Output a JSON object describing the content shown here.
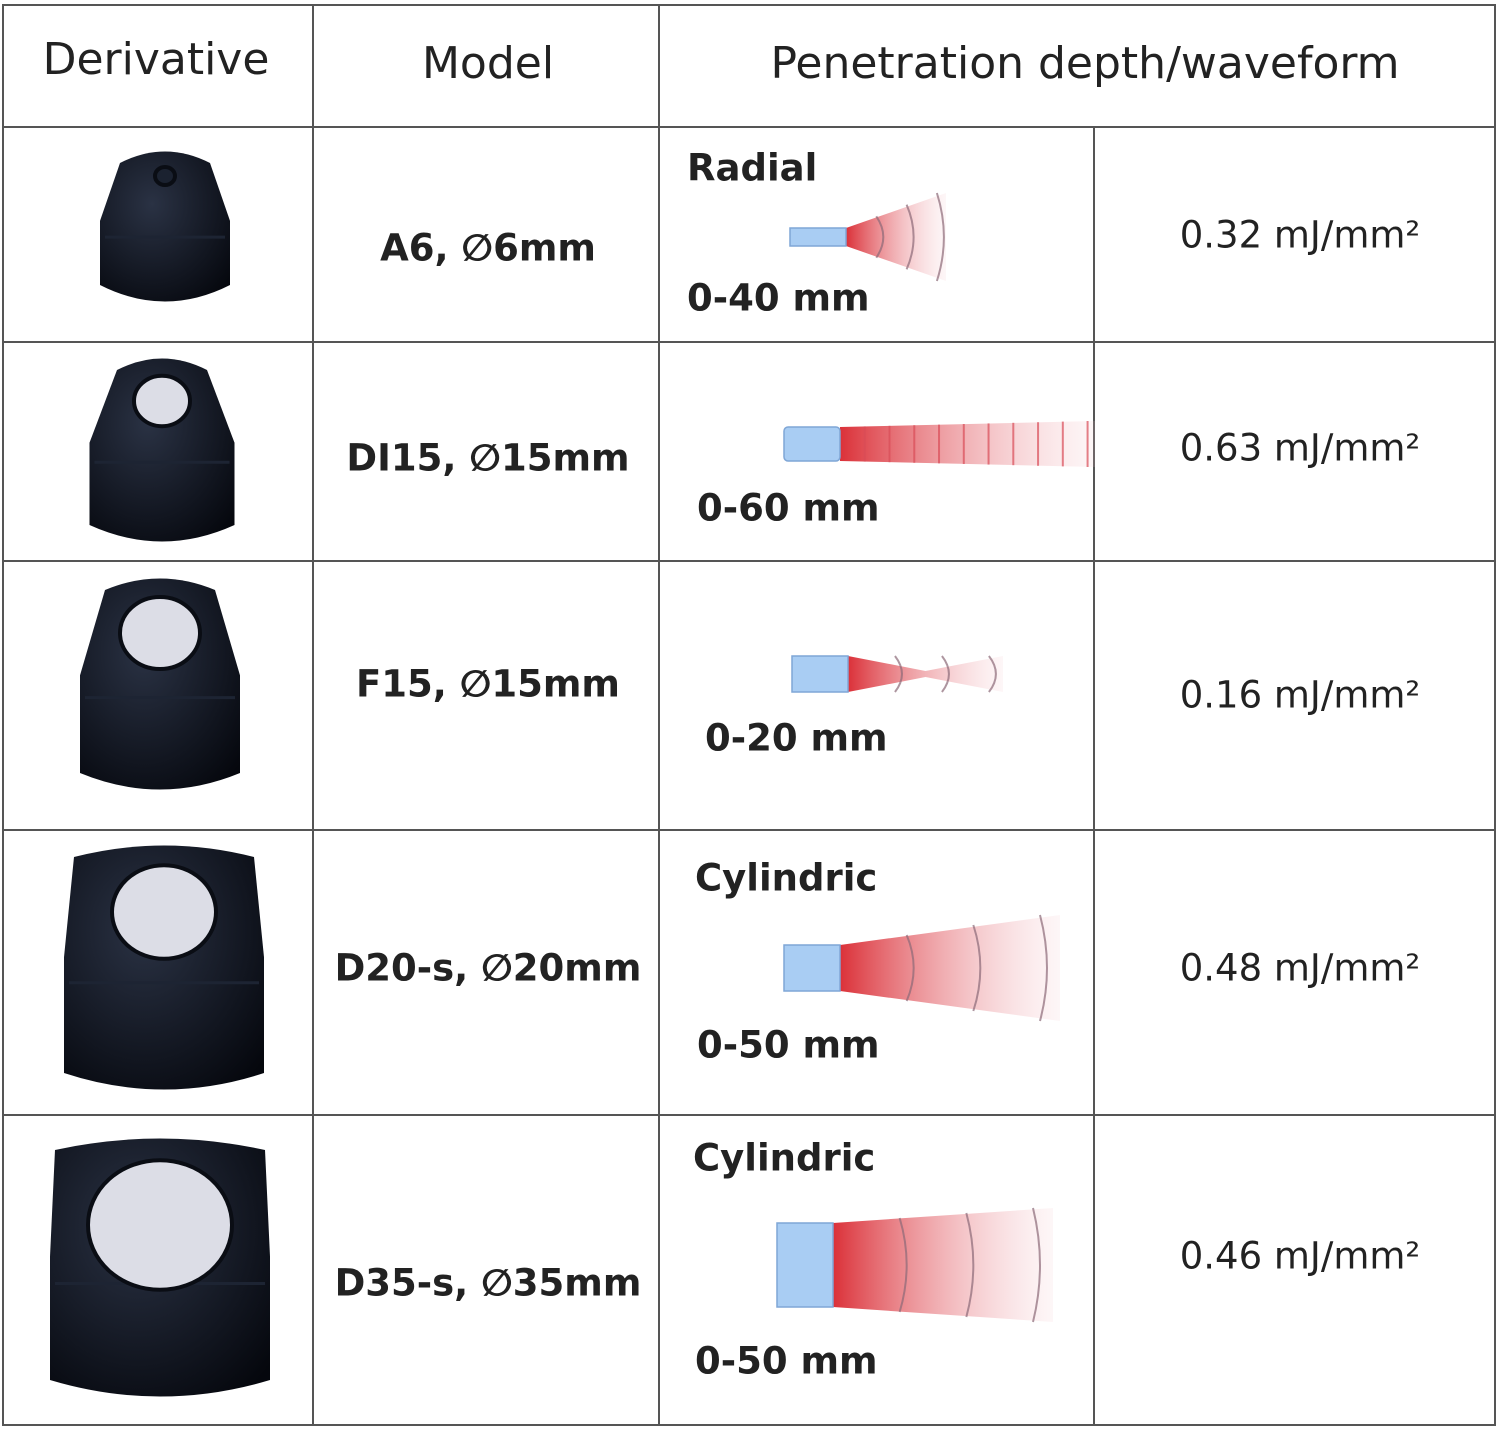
{
  "table": {
    "header": [
      "Derivative",
      "Model",
      "Penetration depth/waveform"
    ],
    "rows": [
      {
        "model": "A6, ∅6mm",
        "waveform": "Radial",
        "depth": "0-40 mm",
        "energy": "0.32 mJ/mm²"
      },
      {
        "model": "DI15, ∅15mm",
        "depth": "0-60 mm",
        "energy": "0.63 mJ/mm²"
      },
      {
        "model": "F15, ∅15mm",
        "depth": "0-20 mm",
        "energy": "0.16 mJ/mm²"
      },
      {
        "model": "D20-s, ∅20mm",
        "waveform": "Cylindric",
        "depth": "0-50 mm",
        "energy": "0.48 mJ/mm²"
      },
      {
        "model": "D35-s, ∅35mm",
        "waveform": "Cylindric",
        "depth": "0-50 mm",
        "energy": "0.46 mJ/mm²"
      }
    ]
  }
}
